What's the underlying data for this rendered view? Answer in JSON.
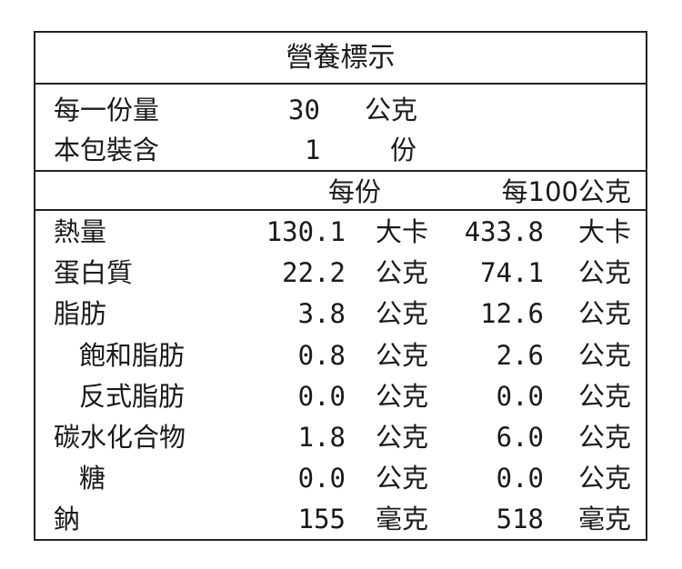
{
  "title": "營養標示",
  "serving": {
    "size_label": "每一份量",
    "size_value": "30",
    "size_unit": "公克",
    "count_label": "本包裝含",
    "count_value": "1",
    "count_unit": "份"
  },
  "headers": {
    "per_serving": "每份",
    "per_100g": "每100公克"
  },
  "rows": [
    {
      "name": "熱量",
      "v1": "130.1",
      "u1": "大卡",
      "v2": "433.8",
      "u2": "大卡",
      "indent": false
    },
    {
      "name": "蛋白質",
      "v1": "22.2",
      "u1": "公克",
      "v2": "74.1",
      "u2": "公克",
      "indent": false
    },
    {
      "name": "脂肪",
      "v1": "3.8",
      "u1": "公克",
      "v2": "12.6",
      "u2": "公克",
      "indent": false
    },
    {
      "name": "飽和脂肪",
      "v1": "0.8",
      "u1": "公克",
      "v2": "2.6",
      "u2": "公克",
      "indent": true
    },
    {
      "name": "反式脂肪",
      "v1": "0.0",
      "u1": "公克",
      "v2": "0.0",
      "u2": "公克",
      "indent": true
    },
    {
      "name": "碳水化合物",
      "v1": "1.8",
      "u1": "公克",
      "v2": "6.0",
      "u2": "公克",
      "indent": false
    },
    {
      "name": "糖",
      "v1": "0.0",
      "u1": "公克",
      "v2": "0.0",
      "u2": "公克",
      "indent": true
    },
    {
      "name": "鈉",
      "v1": "155",
      "u1": "毫克",
      "v2": "518",
      "u2": "毫克",
      "indent": false
    }
  ]
}
